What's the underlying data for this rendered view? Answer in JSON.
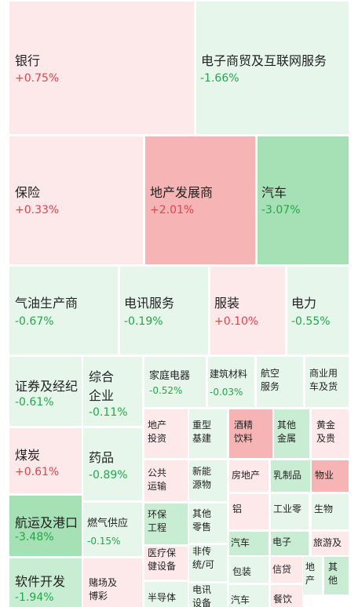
{
  "heatmap": {
    "cells": [
      {
        "id": "yinhang",
        "name": "银行",
        "change": "+0.75%",
        "dir": "up",
        "shade": 1
      },
      {
        "id": "dianzishangmao",
        "name": "电子商贸及互联网服务",
        "change": "-1.66%",
        "dir": "dn",
        "shade": 1
      },
      {
        "id": "baoxian",
        "name": "保险",
        "change": "+0.33%",
        "dir": "up",
        "shade": 1
      },
      {
        "id": "dichanfazhan",
        "name": "地产发展商",
        "change": "+2.01%",
        "dir": "up",
        "shade": 3
      },
      {
        "id": "qiche-big",
        "name": "汽车",
        "change": "-3.07%",
        "dir": "dn",
        "shade": 3
      },
      {
        "id": "qiyou",
        "name": "气油生产商",
        "change": "-0.67%",
        "dir": "dn",
        "shade": 1
      },
      {
        "id": "dianxun",
        "name": "电讯服务",
        "change": "-0.19%",
        "dir": "dn",
        "shade": 1
      },
      {
        "id": "fuzhuang",
        "name": "服装",
        "change": "+0.10%",
        "dir": "up",
        "shade": 1
      },
      {
        "id": "dianli",
        "name": "电力",
        "change": "-0.55%",
        "dir": "dn",
        "shade": 1
      },
      {
        "id": "zhengquan",
        "name": "证券及经纪",
        "change": "-0.61%",
        "dir": "dn",
        "shade": 1
      },
      {
        "id": "zonghe",
        "name": "综合\n企业",
        "change": "-0.11%",
        "dir": "dn",
        "shade": 1
      },
      {
        "id": "jiating",
        "name": "家庭电器",
        "change": "-0.52%",
        "dir": "dn",
        "shade": 1
      },
      {
        "id": "jianzhu",
        "name": "建筑材料",
        "change": "-0.03%",
        "dir": "dn",
        "shade": 1
      },
      {
        "id": "hangkong",
        "name": "航空\n服务",
        "change": "",
        "dir": "dn",
        "shade": 1
      },
      {
        "id": "shangye",
        "name": "商业用\n车及货",
        "change": "",
        "dir": "dn",
        "shade": 1
      },
      {
        "id": "meitan",
        "name": "煤炭",
        "change": "+0.61%",
        "dir": "up",
        "shade": 1
      },
      {
        "id": "yaopin",
        "name": "药品",
        "change": "-0.89%",
        "dir": "dn",
        "shade": 1
      },
      {
        "id": "dichan-touzi",
        "name": "地产\n投资",
        "change": "",
        "dir": "up",
        "shade": 1
      },
      {
        "id": "zhongxing",
        "name": "重型\n基建",
        "change": "",
        "dir": "dn",
        "shade": 1
      },
      {
        "id": "jiujing",
        "name": "酒精\n饮料",
        "change": "",
        "dir": "up",
        "shade": 3
      },
      {
        "id": "qita-jinshu",
        "name": "其他\n金属",
        "change": "",
        "dir": "dn",
        "shade": 2
      },
      {
        "id": "huangjin",
        "name": "黄金\n及贵",
        "change": "",
        "dir": "up",
        "shade": 1
      },
      {
        "id": "gonggong",
        "name": "公共\n运输",
        "change": "",
        "dir": "up",
        "shade": 1
      },
      {
        "id": "xinneng",
        "name": "新能\n源物",
        "change": "",
        "dir": "dn",
        "shade": 1
      },
      {
        "id": "fangdichan",
        "name": "房地产",
        "change": "",
        "dir": "up",
        "shade": 1
      },
      {
        "id": "ruzhipin",
        "name": "乳制品",
        "change": "",
        "dir": "dn",
        "shade": 2
      },
      {
        "id": "wuye",
        "name": "物业",
        "change": "",
        "dir": "up",
        "shade": 3
      },
      {
        "id": "hangyun",
        "name": "航运及港口",
        "change": "-3.48%",
        "dir": "dn",
        "shade": 3
      },
      {
        "id": "ranqi",
        "name": "燃气供应",
        "change": "-0.15%",
        "dir": "dn",
        "shade": 1
      },
      {
        "id": "huanbao",
        "name": "环保\n工程",
        "change": "",
        "dir": "dn",
        "shade": 2
      },
      {
        "id": "qita-lingshou",
        "name": "其他\n零售",
        "change": "",
        "dir": "dn",
        "shade": 1
      },
      {
        "id": "lv",
        "name": "铝",
        "change": "",
        "dir": "up",
        "shade": 1
      },
      {
        "id": "gongyeling",
        "name": "工业零",
        "change": "",
        "dir": "dn",
        "shade": 1
      },
      {
        "id": "shengwu",
        "name": "生物",
        "change": "",
        "dir": "dn",
        "shade": 1
      },
      {
        "id": "yiliao",
        "name": "医疗保\n健设备",
        "change": "",
        "dir": "up",
        "shade": 1
      },
      {
        "id": "feinai",
        "name": "非传\n统/可",
        "change": "",
        "dir": "dn",
        "shade": 1
      },
      {
        "id": "qiche-small",
        "name": "汽车",
        "change": "",
        "dir": "dn",
        "shade": 2
      },
      {
        "id": "dianzi",
        "name": "电子",
        "change": "",
        "dir": "dn",
        "shade": 2
      },
      {
        "id": "lvyou",
        "name": "旅游及",
        "change": "",
        "dir": "up",
        "shade": 1
      },
      {
        "id": "ruanjian",
        "name": "软件开发",
        "change": "-1.94%",
        "dir": "dn",
        "shade": 2
      },
      {
        "id": "duchang",
        "name": "赌场及\n博彩",
        "change": "",
        "dir": "up",
        "shade": 1
      },
      {
        "id": "baozhuang",
        "name": "包装",
        "change": "",
        "dir": "dn",
        "shade": 1
      },
      {
        "id": "xindai",
        "name": "信贷",
        "change": "",
        "dir": "up",
        "shade": 1
      },
      {
        "id": "dichan-small",
        "name": "地\n产",
        "change": "",
        "dir": "dn",
        "shade": 1
      },
      {
        "id": "qita-small",
        "name": "其\n他",
        "change": "",
        "dir": "dn",
        "shade": 2
      },
      {
        "id": "bandaoti",
        "name": "半导体",
        "change": "",
        "dir": "dn",
        "shade": 1
      },
      {
        "id": "dianxun-sb",
        "name": "电讯\n设备",
        "change": "",
        "dir": "dn",
        "shade": 1
      },
      {
        "id": "qiche-bottom",
        "name": "汽车",
        "change": "",
        "dir": "dn",
        "shade": 1
      },
      {
        "id": "canyin",
        "name": "餐饮",
        "change": "",
        "dir": "up",
        "shade": 1
      }
    ]
  },
  "colors": {
    "up": [
      "#fde9e9",
      "#fbd7d7",
      "#f6b4b4"
    ],
    "dn": [
      "#e6f6ea",
      "#c9edd2",
      "#a5e1b4"
    ]
  }
}
